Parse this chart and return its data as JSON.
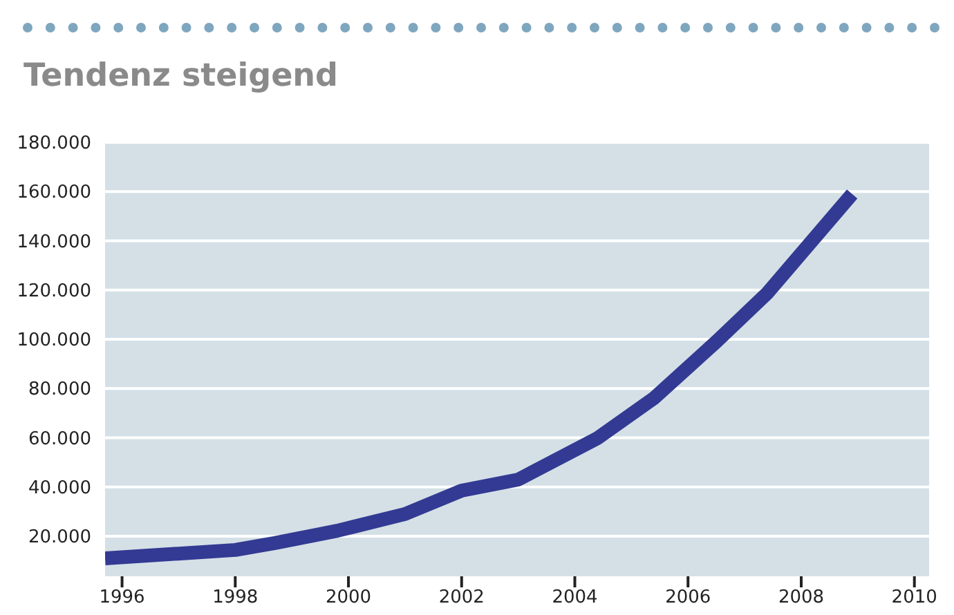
{
  "chart_data": {
    "type": "line",
    "title": "Tendenz steigend",
    "x": [
      1995.7,
      1998,
      1998.7,
      1999.8,
      2001,
      2002,
      2003,
      2004.4,
      2005.4,
      2006.5,
      2007.4,
      2008.9
    ],
    "series": [
      {
        "color": "#333a93",
        "values": [
          11000,
          14400,
          17200,
          22200,
          29000,
          38500,
          43000,
          59800,
          76100,
          99000,
          118700,
          159000
        ]
      }
    ],
    "xlim": [
      1995.7,
      2010.26
    ],
    "xticks": [
      1996,
      1998,
      2000,
      2002,
      2004,
      2006,
      2008,
      2010
    ],
    "ylim": [
      3700,
      180000
    ],
    "yticks": [
      {
        "value": 20000,
        "label": "20.000"
      },
      {
        "value": 40000,
        "label": "40.000"
      },
      {
        "value": 60000,
        "label": "60.000"
      },
      {
        "value": 80000,
        "label": "80.000"
      },
      {
        "value": 100000,
        "label": "100.000"
      },
      {
        "value": 120000,
        "label": "120.000"
      },
      {
        "value": 140000,
        "label": "140.000"
      },
      {
        "value": 160000,
        "label": "160.000"
      },
      {
        "value": 180000,
        "label": "180.000"
      }
    ],
    "grid": "y",
    "marker": "none",
    "line_style": "solid"
  }
}
